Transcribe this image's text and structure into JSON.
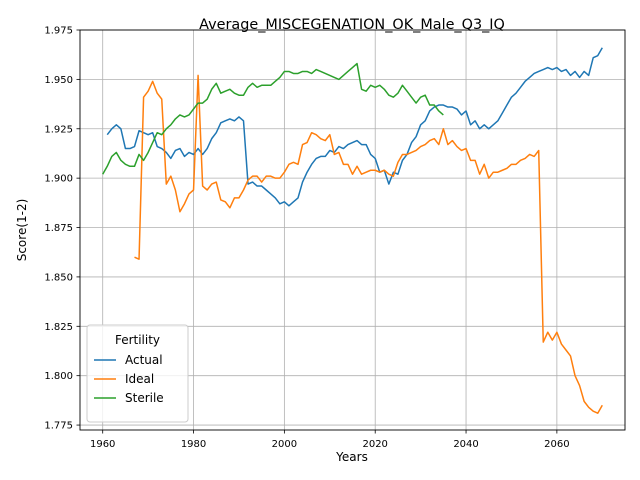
{
  "chart_data": {
    "type": "line",
    "title": "Average_MISCEGENATION_OK_Male_Q3_IQ",
    "xlabel": "Years",
    "ylabel": "Score(1-2)",
    "xlim": [
      1955,
      2075
    ],
    "ylim": [
      1.7725,
      1.975
    ],
    "xticks": [
      1960,
      1980,
      2000,
      2020,
      2040,
      2060
    ],
    "yticks": [
      1.775,
      1.8,
      1.825,
      1.85,
      1.875,
      1.9,
      1.925,
      1.95,
      1.975
    ],
    "ytick_labels": [
      "1.775",
      "1.800",
      "1.825",
      "1.850",
      "1.875",
      "1.900",
      "1.925",
      "1.950",
      "1.975"
    ],
    "grid": true,
    "legend": {
      "title": "Fertility",
      "position": "lower-left"
    },
    "series": [
      {
        "name": "Actual",
        "color": "#1f77b4",
        "points": [
          [
            1961,
            1.922
          ],
          [
            1962,
            1.925
          ],
          [
            1963,
            1.927
          ],
          [
            1964,
            1.925
          ],
          [
            1965,
            1.915
          ],
          [
            1966,
            1.915
          ],
          [
            1967,
            1.916
          ],
          [
            1968,
            1.924
          ],
          [
            1969,
            1.923
          ],
          [
            1970,
            1.922
          ],
          [
            1971,
            1.923
          ],
          [
            1972,
            1.916
          ],
          [
            1973,
            1.915
          ],
          [
            1974,
            1.913
          ],
          [
            1975,
            1.91
          ],
          [
            1976,
            1.914
          ],
          [
            1977,
            1.915
          ],
          [
            1978,
            1.911
          ],
          [
            1979,
            1.913
          ],
          [
            1980,
            1.912
          ],
          [
            1981,
            1.915
          ],
          [
            1982,
            1.912
          ],
          [
            1983,
            1.915
          ],
          [
            1984,
            1.92
          ],
          [
            1985,
            1.923
          ],
          [
            1986,
            1.928
          ],
          [
            1987,
            1.929
          ],
          [
            1988,
            1.93
          ],
          [
            1989,
            1.929
          ],
          [
            1990,
            1.931
          ],
          [
            1991,
            1.929
          ],
          [
            1992,
            1.897
          ],
          [
            1993,
            1.898
          ],
          [
            1994,
            1.896
          ],
          [
            1995,
            1.896
          ],
          [
            1996,
            1.894
          ],
          [
            1997,
            1.892
          ],
          [
            1998,
            1.89
          ],
          [
            1999,
            1.887
          ],
          [
            2000,
            1.888
          ],
          [
            2001,
            1.886
          ],
          [
            2002,
            1.888
          ],
          [
            2003,
            1.89
          ],
          [
            2004,
            1.898
          ],
          [
            2005,
            1.903
          ],
          [
            2006,
            1.907
          ],
          [
            2007,
            1.91
          ],
          [
            2008,
            1.911
          ],
          [
            2009,
            1.911
          ],
          [
            2010,
            1.914
          ],
          [
            2011,
            1.913
          ],
          [
            2012,
            1.916
          ],
          [
            2013,
            1.915
          ],
          [
            2014,
            1.917
          ],
          [
            2015,
            1.918
          ],
          [
            2016,
            1.919
          ],
          [
            2017,
            1.917
          ],
          [
            2018,
            1.917
          ],
          [
            2019,
            1.912
          ],
          [
            2020,
            1.91
          ],
          [
            2021,
            1.903
          ],
          [
            2022,
            1.904
          ],
          [
            2023,
            1.897
          ],
          [
            2024,
            1.903
          ],
          [
            2025,
            1.902
          ],
          [
            2026,
            1.909
          ],
          [
            2027,
            1.912
          ],
          [
            2028,
            1.918
          ],
          [
            2029,
            1.921
          ],
          [
            2030,
            1.927
          ],
          [
            2031,
            1.929
          ],
          [
            2032,
            1.934
          ],
          [
            2033,
            1.936
          ],
          [
            2034,
            1.937
          ],
          [
            2035,
            1.937
          ],
          [
            2036,
            1.936
          ],
          [
            2037,
            1.936
          ],
          [
            2038,
            1.935
          ],
          [
            2039,
            1.932
          ],
          [
            2040,
            1.934
          ],
          [
            2041,
            1.927
          ],
          [
            2042,
            1.929
          ],
          [
            2043,
            1.925
          ],
          [
            2044,
            1.927
          ],
          [
            2045,
            1.925
          ],
          [
            2046,
            1.927
          ],
          [
            2047,
            1.929
          ],
          [
            2048,
            1.933
          ],
          [
            2049,
            1.937
          ],
          [
            2050,
            1.941
          ],
          [
            2051,
            1.943
          ],
          [
            2052,
            1.946
          ],
          [
            2053,
            1.949
          ],
          [
            2054,
            1.951
          ],
          [
            2055,
            1.953
          ],
          [
            2056,
            1.954
          ],
          [
            2057,
            1.955
          ],
          [
            2058,
            1.956
          ],
          [
            2059,
            1.955
          ],
          [
            2060,
            1.956
          ],
          [
            2061,
            1.954
          ],
          [
            2062,
            1.955
          ],
          [
            2063,
            1.952
          ],
          [
            2064,
            1.954
          ],
          [
            2065,
            1.951
          ],
          [
            2066,
            1.954
          ],
          [
            2067,
            1.952
          ],
          [
            2068,
            1.961
          ],
          [
            2069,
            1.962
          ],
          [
            2070,
            1.966
          ]
        ]
      },
      {
        "name": "Ideal",
        "color": "#ff7f0e",
        "points": [
          [
            1967,
            1.86
          ],
          [
            1968,
            1.859
          ],
          [
            1969,
            1.941
          ],
          [
            1970,
            1.944
          ],
          [
            1971,
            1.949
          ],
          [
            1972,
            1.943
          ],
          [
            1973,
            1.94
          ],
          [
            1974,
            1.897
          ],
          [
            1975,
            1.901
          ],
          [
            1976,
            1.894
          ],
          [
            1977,
            1.883
          ],
          [
            1978,
            1.887
          ],
          [
            1979,
            1.892
          ],
          [
            1980,
            1.894
          ],
          [
            1981,
            1.952
          ],
          [
            1982,
            1.896
          ],
          [
            1983,
            1.894
          ],
          [
            1984,
            1.897
          ],
          [
            1985,
            1.898
          ],
          [
            1986,
            1.889
          ],
          [
            1987,
            1.888
          ],
          [
            1988,
            1.885
          ],
          [
            1989,
            1.89
          ],
          [
            1990,
            1.89
          ],
          [
            1991,
            1.894
          ],
          [
            1992,
            1.899
          ],
          [
            1993,
            1.901
          ],
          [
            1994,
            1.901
          ],
          [
            1995,
            1.898
          ],
          [
            1996,
            1.901
          ],
          [
            1997,
            1.901
          ],
          [
            1998,
            1.9
          ],
          [
            1999,
            1.9
          ],
          [
            2000,
            1.903
          ],
          [
            2001,
            1.907
          ],
          [
            2002,
            1.908
          ],
          [
            2003,
            1.907
          ],
          [
            2004,
            1.917
          ],
          [
            2005,
            1.918
          ],
          [
            2006,
            1.923
          ],
          [
            2007,
            1.922
          ],
          [
            2008,
            1.92
          ],
          [
            2009,
            1.919
          ],
          [
            2010,
            1.922
          ],
          [
            2011,
            1.912
          ],
          [
            2012,
            1.913
          ],
          [
            2013,
            1.907
          ],
          [
            2014,
            1.907
          ],
          [
            2015,
            1.902
          ],
          [
            2016,
            1.906
          ],
          [
            2017,
            1.902
          ],
          [
            2018,
            1.903
          ],
          [
            2019,
            1.904
          ],
          [
            2020,
            1.904
          ],
          [
            2021,
            1.903
          ],
          [
            2022,
            1.904
          ],
          [
            2023,
            1.902
          ],
          [
            2024,
            1.901
          ],
          [
            2025,
            1.908
          ],
          [
            2026,
            1.912
          ],
          [
            2027,
            1.912
          ],
          [
            2028,
            1.913
          ],
          [
            2029,
            1.914
          ],
          [
            2030,
            1.916
          ],
          [
            2031,
            1.917
          ],
          [
            2032,
            1.919
          ],
          [
            2033,
            1.92
          ],
          [
            2034,
            1.917
          ],
          [
            2035,
            1.925
          ],
          [
            2036,
            1.917
          ],
          [
            2037,
            1.919
          ],
          [
            2038,
            1.916
          ],
          [
            2039,
            1.914
          ],
          [
            2040,
            1.915
          ],
          [
            2041,
            1.909
          ],
          [
            2042,
            1.909
          ],
          [
            2043,
            1.902
          ],
          [
            2044,
            1.907
          ],
          [
            2045,
            1.9
          ],
          [
            2046,
            1.903
          ],
          [
            2047,
            1.903
          ],
          [
            2048,
            1.904
          ],
          [
            2049,
            1.905
          ],
          [
            2050,
            1.907
          ],
          [
            2051,
            1.907
          ],
          [
            2052,
            1.909
          ],
          [
            2053,
            1.91
          ],
          [
            2054,
            1.912
          ],
          [
            2055,
            1.911
          ],
          [
            2056,
            1.914
          ],
          [
            2057,
            1.817
          ],
          [
            2058,
            1.822
          ],
          [
            2059,
            1.818
          ],
          [
            2060,
            1.822
          ],
          [
            2061,
            1.816
          ],
          [
            2062,
            1.813
          ],
          [
            2063,
            1.81
          ],
          [
            2064,
            1.8
          ],
          [
            2065,
            1.795
          ],
          [
            2066,
            1.787
          ],
          [
            2067,
            1.784
          ],
          [
            2068,
            1.782
          ],
          [
            2069,
            1.781
          ],
          [
            2070,
            1.785
          ]
        ]
      },
      {
        "name": "Sterile",
        "color": "#2ca02c",
        "points": [
          [
            1960,
            1.902
          ],
          [
            1961,
            1.906
          ],
          [
            1962,
            1.911
          ],
          [
            1963,
            1.913
          ],
          [
            1964,
            1.909
          ],
          [
            1965,
            1.907
          ],
          [
            1966,
            1.906
          ],
          [
            1967,
            1.906
          ],
          [
            1968,
            1.912
          ],
          [
            1969,
            1.909
          ],
          [
            1970,
            1.913
          ],
          [
            1971,
            1.918
          ],
          [
            1972,
            1.923
          ],
          [
            1973,
            1.922
          ],
          [
            1974,
            1.925
          ],
          [
            1975,
            1.927
          ],
          [
            1976,
            1.93
          ],
          [
            1977,
            1.932
          ],
          [
            1978,
            1.931
          ],
          [
            1979,
            1.932
          ],
          [
            1980,
            1.935
          ],
          [
            1981,
            1.938
          ],
          [
            1982,
            1.938
          ],
          [
            1983,
            1.94
          ],
          [
            1984,
            1.945
          ],
          [
            1985,
            1.948
          ],
          [
            1986,
            1.943
          ],
          [
            1987,
            1.944
          ],
          [
            1988,
            1.945
          ],
          [
            1989,
            1.943
          ],
          [
            1990,
            1.942
          ],
          [
            1991,
            1.942
          ],
          [
            1992,
            1.946
          ],
          [
            1993,
            1.948
          ],
          [
            1994,
            1.946
          ],
          [
            1995,
            1.947
          ],
          [
            1996,
            1.947
          ],
          [
            1997,
            1.947
          ],
          [
            1998,
            1.949
          ],
          [
            1999,
            1.951
          ],
          [
            2000,
            1.954
          ],
          [
            2001,
            1.954
          ],
          [
            2002,
            1.953
          ],
          [
            2003,
            1.953
          ],
          [
            2004,
            1.954
          ],
          [
            2005,
            1.954
          ],
          [
            2006,
            1.953
          ],
          [
            2007,
            1.955
          ],
          [
            2008,
            1.954
          ],
          [
            2009,
            1.953
          ],
          [
            2010,
            1.952
          ],
          [
            2011,
            1.951
          ],
          [
            2012,
            1.95
          ],
          [
            2013,
            1.952
          ],
          [
            2014,
            1.954
          ],
          [
            2015,
            1.956
          ],
          [
            2016,
            1.958
          ],
          [
            2017,
            1.945
          ],
          [
            2018,
            1.944
          ],
          [
            2019,
            1.947
          ],
          [
            2020,
            1.946
          ],
          [
            2021,
            1.947
          ],
          [
            2022,
            1.945
          ],
          [
            2023,
            1.942
          ],
          [
            2024,
            1.941
          ],
          [
            2025,
            1.943
          ],
          [
            2026,
            1.947
          ],
          [
            2027,
            1.944
          ],
          [
            2028,
            1.941
          ],
          [
            2029,
            1.938
          ],
          [
            2030,
            1.941
          ],
          [
            2031,
            1.942
          ],
          [
            2032,
            1.937
          ],
          [
            2033,
            1.937
          ],
          [
            2034,
            1.934
          ],
          [
            2035,
            1.932
          ]
        ]
      }
    ]
  }
}
